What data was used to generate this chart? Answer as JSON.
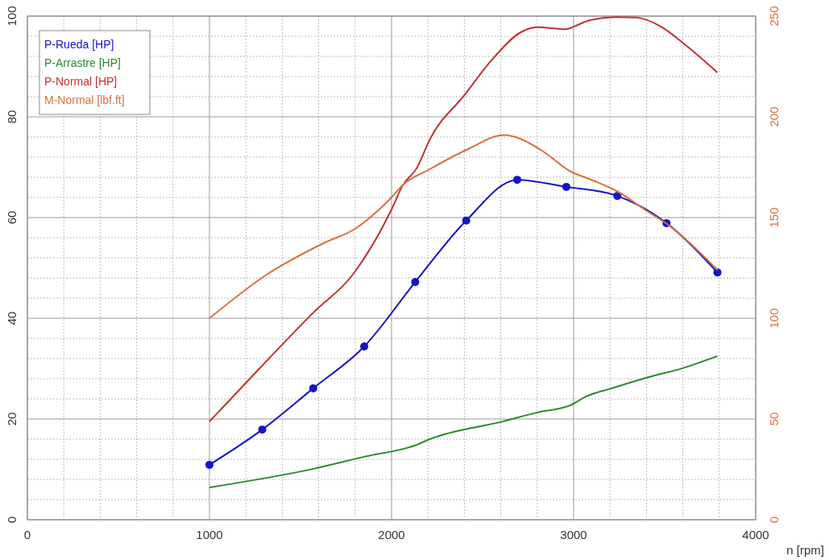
{
  "chart_data": {
    "type": "line",
    "xlabel": "n [rpm]",
    "xlim": [
      0,
      4000
    ],
    "xticks": [
      0,
      1000,
      2000,
      3000,
      4000
    ],
    "ylim": [
      0,
      100
    ],
    "yticks": [
      0,
      20,
      40,
      60,
      80,
      100
    ],
    "y2lim": [
      0,
      250
    ],
    "y2ticks": [
      0,
      50,
      100,
      150,
      200,
      250
    ],
    "grid": true,
    "legend": "top left",
    "series": [
      {
        "name": "P-Rueda [HP]",
        "color": "#1414c8",
        "marker": "circle",
        "x": [
          1000,
          1290,
          1570,
          1850,
          2130,
          2410,
          2690,
          2960,
          3240,
          3510,
          3790
        ],
        "values": [
          10.9,
          17.9,
          26.1,
          34.4,
          47.2,
          59.4,
          67.5,
          66.1,
          64.3,
          58.9,
          49.1
        ]
      },
      {
        "name": "P-Arrastre [HP]",
        "color": "#2a8a2a",
        "marker": "none",
        "x": [
          1000,
          1570,
          1850,
          2140,
          2210,
          2610,
          2800,
          2980,
          3070,
          3210,
          3400,
          3600,
          3790
        ],
        "values": [
          6.4,
          10.1,
          12.5,
          14.9,
          16.0,
          19.5,
          21.3,
          22.7,
          24.5,
          26.1,
          28.2,
          30.1,
          32.5
        ]
      },
      {
        "name": "P-Normal [HP]",
        "color": "#c03030",
        "marker": "none",
        "x": [
          1000,
          1180,
          1570,
          1790,
          2000,
          2060,
          2140,
          2210,
          2400,
          2560,
          2710,
          2800,
          2960,
          3000,
          3090,
          3240,
          3350,
          3480,
          3610,
          3790
        ],
        "values": [
          19.5,
          26.4,
          41.1,
          48.8,
          61.6,
          66.3,
          69.9,
          75.5,
          84.3,
          91.7,
          96.8,
          97.8,
          97.4,
          97.9,
          99.2,
          99.8,
          99.7,
          97.9,
          94.4,
          88.8
        ]
      },
      {
        "name": "M-Normal [lbf.ft]",
        "color": "#d8703a",
        "marker": "none",
        "axis": "y2",
        "x": [
          1000,
          1320,
          1620,
          1810,
          1920,
          2000,
          2060,
          2210,
          2420,
          2620,
          2680,
          2830,
          2980,
          3090,
          3240,
          3390,
          3540,
          3790
        ],
        "values": [
          100,
          122,
          137,
          145,
          153,
          160,
          166,
          174,
          184,
          191,
          190,
          183,
          173,
          169,
          163,
          154,
          145,
          124
        ]
      }
    ]
  }
}
